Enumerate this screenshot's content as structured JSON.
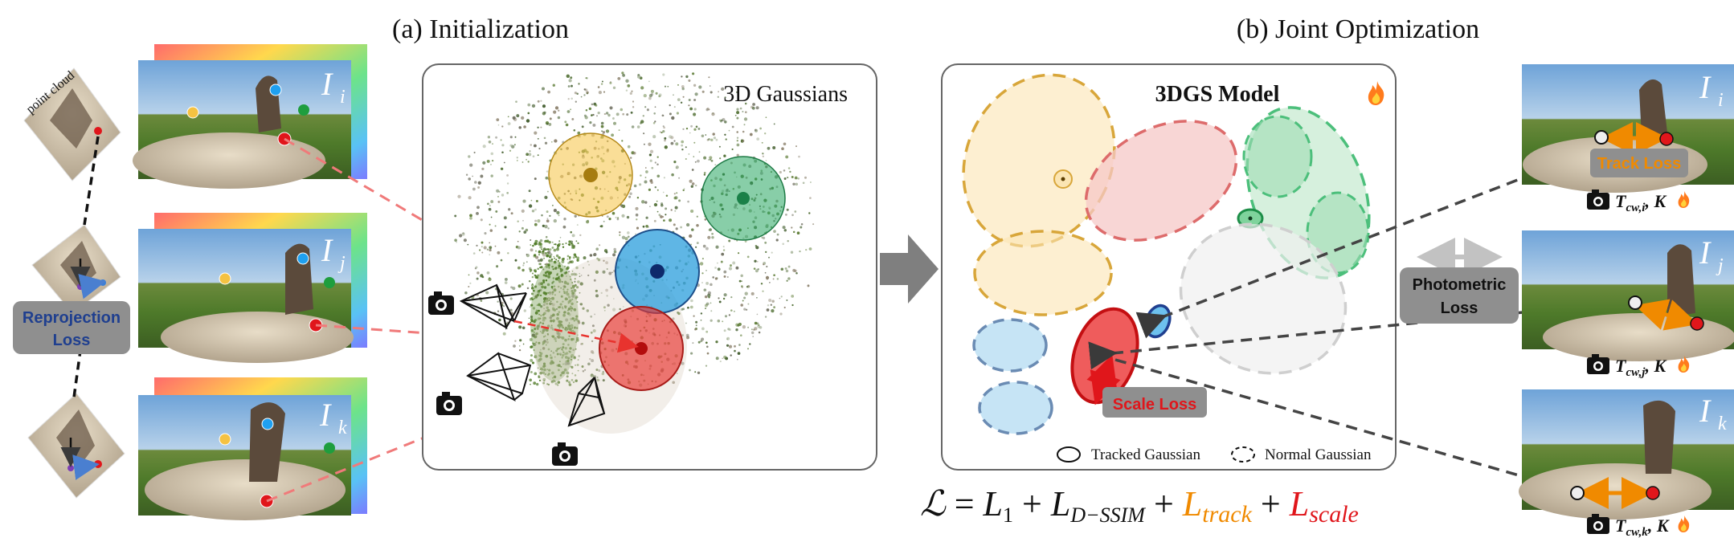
{
  "headings": {
    "initialization": "(a) Initialization",
    "joint_optimization": "(b) Joint Optimization"
  },
  "left": {
    "point_cloud_label": "point cloud",
    "reprojection_loss_line1": "Reprojection",
    "reprojection_loss_line2": "Loss",
    "frames": [
      {
        "label": "I",
        "sub": "i"
      },
      {
        "label": "I",
        "sub": "j"
      },
      {
        "label": "I",
        "sub": "k"
      }
    ]
  },
  "init_panel": {
    "title": "3D Gaussians"
  },
  "model_panel": {
    "title": "3DGS Model",
    "scale_loss": "Scale Loss",
    "legend_tracked": "Tracked Gaussian",
    "legend_normal": "Normal Gaussian"
  },
  "equation": {
    "lhs": "ℒ",
    "eq": " = ",
    "L": "L",
    "sub1": "1",
    "plus1": " + ",
    "L2": "L",
    "sub2": "D−SSIM",
    "plus2": " + ",
    "L3": "L",
    "sub3": "track",
    "plus3": " + ",
    "L4": "L",
    "sub4": "scale"
  },
  "right": {
    "track_loss": "Track Loss",
    "photometric_line1": "Photometric",
    "photometric_line2": "Loss",
    "frames": [
      {
        "label": "I",
        "sub": "i",
        "pose": "T",
        "pose_sub": "cw,i",
        "k": ", K"
      },
      {
        "label": "I",
        "sub": "j",
        "pose": "T",
        "pose_sub": "cw,j",
        "k": ", K"
      },
      {
        "label": "I",
        "sub": "k",
        "pose": "T",
        "pose_sub": "cw,k",
        "k": ", K"
      }
    ]
  },
  "colors": {
    "yellow": "#f5c242",
    "blue": "#3aa8e0",
    "green": "#27a560",
    "red": "#e8332e",
    "orange": "#f08a00",
    "track_red": "#e0161b",
    "panel_border": "#666666",
    "label_gray": "#8c8c8c"
  },
  "icons": [
    "camera-icon",
    "fire-icon",
    "arrow-right-icon"
  ]
}
